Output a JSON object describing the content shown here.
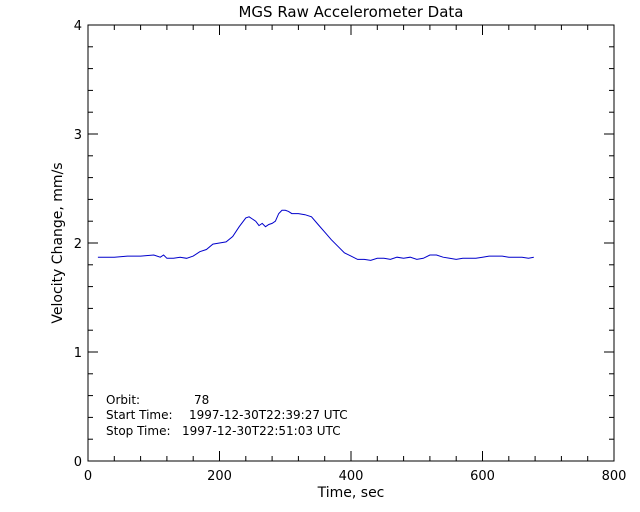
{
  "chart_data": {
    "type": "line",
    "title": "MGS Raw Accelerometer Data",
    "xlabel": "Time, sec",
    "ylabel": "Velocity Change, mm/s",
    "xlim": [
      0,
      800
    ],
    "ylim": [
      0,
      4
    ],
    "xticks": [
      0,
      200,
      400,
      600,
      800
    ],
    "yticks": [
      0,
      1,
      2,
      3,
      4
    ],
    "grid": false,
    "series": [
      {
        "color": "#0000cc",
        "x": [
          15,
          40,
          60,
          80,
          100,
          110,
          115,
          120,
          130,
          140,
          150,
          160,
          170,
          180,
          190,
          200,
          210,
          220,
          230,
          240,
          245,
          250,
          255,
          260,
          265,
          270,
          275,
          280,
          285,
          290,
          295,
          300,
          305,
          310,
          320,
          330,
          340,
          350,
          360,
          370,
          380,
          390,
          400,
          410,
          420,
          430,
          440,
          450,
          460,
          470,
          480,
          490,
          500,
          510,
          520,
          530,
          540,
          550,
          560,
          570,
          580,
          590,
          600,
          610,
          620,
          630,
          640,
          650,
          660,
          670,
          678
        ],
        "y": [
          1.87,
          1.87,
          1.88,
          1.88,
          1.89,
          1.87,
          1.89,
          1.86,
          1.86,
          1.87,
          1.86,
          1.88,
          1.92,
          1.94,
          1.99,
          2.0,
          2.01,
          2.06,
          2.15,
          2.23,
          2.24,
          2.22,
          2.2,
          2.16,
          2.18,
          2.15,
          2.17,
          2.18,
          2.2,
          2.27,
          2.3,
          2.3,
          2.29,
          2.27,
          2.27,
          2.26,
          2.24,
          2.17,
          2.1,
          2.03,
          1.97,
          1.91,
          1.88,
          1.85,
          1.85,
          1.84,
          1.86,
          1.86,
          1.85,
          1.87,
          1.86,
          1.87,
          1.85,
          1.86,
          1.89,
          1.89,
          1.87,
          1.86,
          1.85,
          1.86,
          1.86,
          1.86,
          1.87,
          1.88,
          1.88,
          1.88,
          1.87,
          1.87,
          1.87,
          1.86,
          1.87
        ]
      }
    ],
    "annotations": [
      {
        "label": "Orbit:",
        "value": "78"
      },
      {
        "label": "Start Time:",
        "value": "1997-12-30T22:39:27 UTC"
      },
      {
        "label": "Stop Time:",
        "value": "1997-12-30T22:51:03 UTC"
      }
    ]
  }
}
